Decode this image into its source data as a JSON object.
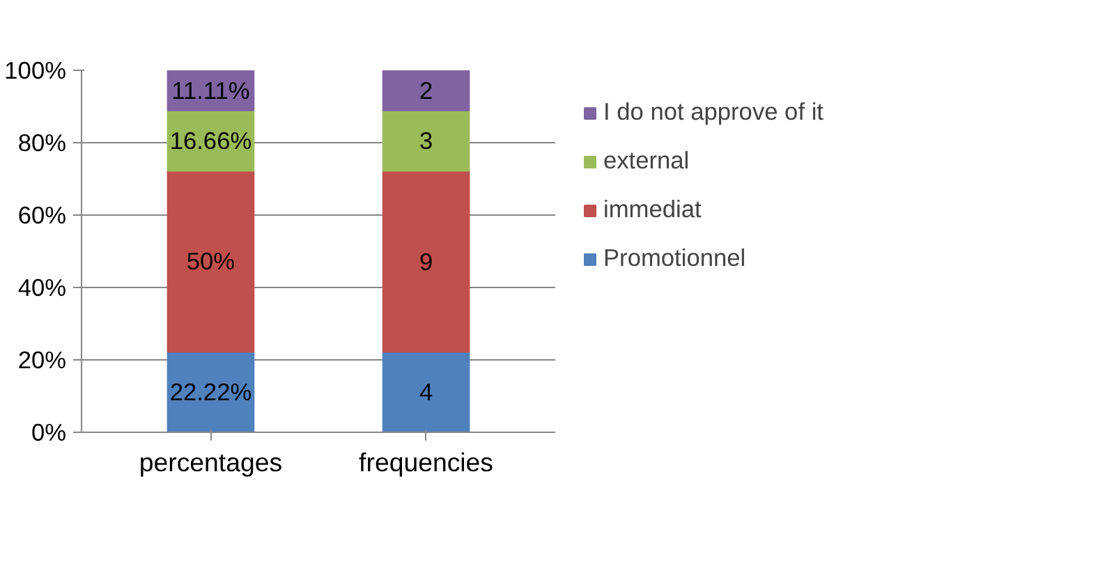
{
  "chart_data": {
    "type": "bar",
    "stacked": true,
    "categories": [
      "percentages",
      "frequencies"
    ],
    "series": [
      {
        "name": "Promotionnel",
        "color": "#4f81bd",
        "values": [
          22.22,
          22.2
        ],
        "value_labels": [
          "22.22%",
          null
        ]
      },
      {
        "name": "immediat",
        "color": "#c0504d",
        "values": [
          50,
          50
        ],
        "value_labels": [
          "50%",
          null
        ]
      },
      {
        "name": "external",
        "color": "#9bbb59",
        "values": [
          16.66,
          16.7
        ],
        "value_labels": [
          "16.66%",
          null
        ]
      },
      {
        "name": "I do not approve of it",
        "color": "#8064a2",
        "values": [
          11.11,
          11.1
        ],
        "value_labels": [
          "11.11%",
          null
        ]
      }
    ],
    "annotations": [
      "4",
      "9",
      "3",
      "2"
    ],
    "ylim": [
      0,
      100
    ],
    "yticks": [
      {
        "value": 0,
        "label": "0%"
      },
      {
        "value": 20,
        "label": "20%"
      },
      {
        "value": 40,
        "label": "40%"
      },
      {
        "value": 60,
        "label": "60%"
      },
      {
        "value": 80,
        "label": "80%"
      },
      {
        "value": 100,
        "label": "100%"
      }
    ],
    "grid": "y",
    "legend": "right"
  }
}
